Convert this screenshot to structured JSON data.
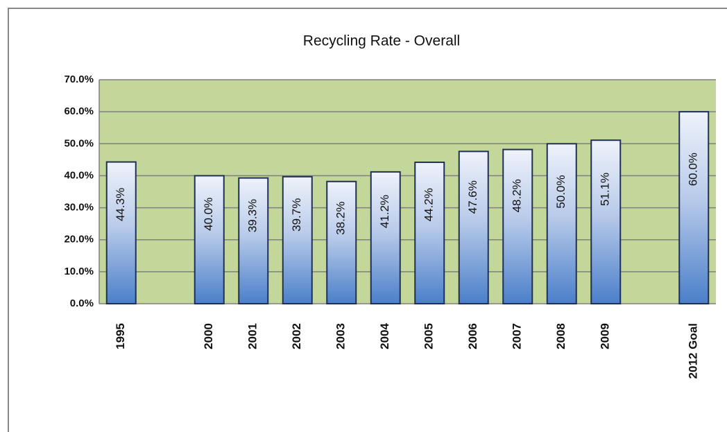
{
  "chart_data": {
    "type": "bar",
    "title": "Recycling Rate - Overall",
    "categories": [
      "1995",
      null,
      "2000",
      "2001",
      "2002",
      "2003",
      "2004",
      "2005",
      "2006",
      "2007",
      "2008",
      "2009",
      null,
      "2012 Goal"
    ],
    "values": [
      44.3,
      null,
      40.0,
      39.3,
      39.7,
      38.2,
      41.2,
      44.2,
      47.6,
      48.2,
      50.0,
      51.1,
      null,
      60.0
    ],
    "value_labels": [
      "44.3%",
      null,
      "40.0%",
      "39.3%",
      "39.7%",
      "38.2%",
      "41.2%",
      "44.2%",
      "47.6%",
      "48.2%",
      "50.0%",
      "51.1%",
      null,
      "60.0%"
    ],
    "color": "#4a7fc9",
    "ylim": [
      0,
      70
    ],
    "yticks": [
      {
        "value": 0,
        "label": "0.0%"
      },
      {
        "value": 10,
        "label": "10.0%"
      },
      {
        "value": 20,
        "label": "20.0%"
      },
      {
        "value": 30,
        "label": "30.0%"
      },
      {
        "value": 40,
        "label": "40.0%"
      },
      {
        "value": 50,
        "label": "50.0%"
      },
      {
        "value": 60,
        "label": "60.0%"
      },
      {
        "value": 70,
        "label": "70.0%"
      }
    ],
    "grid": true
  }
}
